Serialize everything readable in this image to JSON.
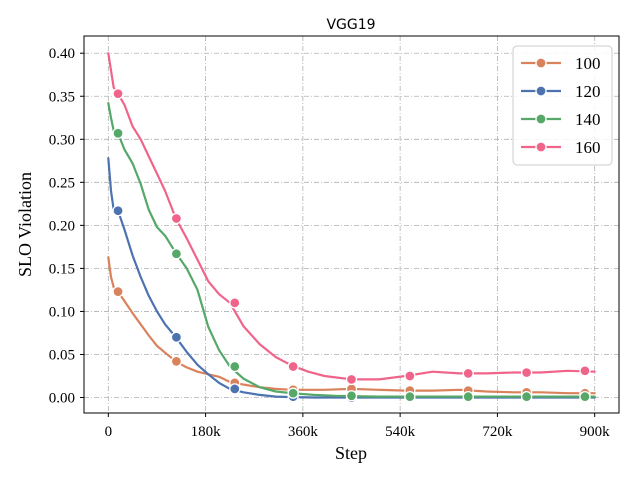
{
  "chart_data": {
    "type": "line",
    "title": "VGG19",
    "xlabel": "Step",
    "ylabel": "SLO Violation",
    "xlim": [
      -45000,
      945000
    ],
    "ylim": [
      -0.018,
      0.42
    ],
    "x_ticks": [
      0,
      180000,
      360000,
      540000,
      720000,
      900000
    ],
    "x_tick_labels": [
      "0",
      "180k",
      "360k",
      "540k",
      "720k",
      "900k"
    ],
    "y_ticks": [
      0.0,
      0.05,
      0.1,
      0.15,
      0.2,
      0.25,
      0.3,
      0.35,
      0.4
    ],
    "y_tick_labels": [
      "0.00",
      "0.05",
      "0.10",
      "0.15",
      "0.20",
      "0.25",
      "0.30",
      "0.35",
      "0.40"
    ],
    "grid": true,
    "legend_position": "top-right",
    "series": [
      {
        "name": "100",
        "color": "#d9825b",
        "x": [
          0,
          5000,
          10000,
          18000,
          30000,
          45000,
          60000,
          75000,
          90000,
          105000,
          125000,
          145000,
          165000,
          185000,
          205000,
          225000,
          250000,
          280000,
          310000,
          340000,
          360000,
          400000,
          450000,
          500000,
          550000,
          600000,
          650000,
          700000,
          750000,
          800000,
          850000,
          900000
        ],
        "y": [
          0.163,
          0.14,
          0.128,
          0.123,
          0.112,
          0.098,
          0.085,
          0.072,
          0.06,
          0.052,
          0.042,
          0.035,
          0.03,
          0.027,
          0.024,
          0.018,
          0.015,
          0.012,
          0.01,
          0.009,
          0.009,
          0.009,
          0.01,
          0.009,
          0.008,
          0.008,
          0.009,
          0.007,
          0.006,
          0.006,
          0.005,
          0.005
        ],
        "marker_x": [
          18000,
          126000,
          234000,
          342000,
          450000,
          558000,
          666000,
          774000,
          882000
        ],
        "marker_y": [
          0.123,
          0.042,
          0.017,
          0.009,
          0.01,
          0.008,
          0.008,
          0.006,
          0.005
        ]
      },
      {
        "name": "120",
        "color": "#4c72b0",
        "x": [
          0,
          5000,
          10000,
          18000,
          30000,
          45000,
          60000,
          75000,
          90000,
          105000,
          125000,
          145000,
          165000,
          185000,
          205000,
          225000,
          250000,
          280000,
          310000,
          340000,
          380000,
          450000,
          550000,
          650000,
          750000,
          900000
        ],
        "y": [
          0.278,
          0.24,
          0.218,
          0.217,
          0.195,
          0.165,
          0.14,
          0.118,
          0.1,
          0.085,
          0.07,
          0.053,
          0.038,
          0.027,
          0.017,
          0.01,
          0.006,
          0.003,
          0.001,
          0.0005,
          0.0,
          0.0,
          0.0,
          0.0,
          0.0,
          0.0
        ],
        "marker_x": [
          18000,
          126000,
          234000,
          342000,
          450000,
          558000,
          666000,
          774000,
          882000
        ],
        "marker_y": [
          0.217,
          0.07,
          0.01,
          0.001,
          0.0,
          0.0,
          0.0,
          0.0,
          0.0
        ]
      },
      {
        "name": "140",
        "color": "#55a868",
        "x": [
          0,
          5000,
          10000,
          18000,
          30000,
          45000,
          60000,
          75000,
          90000,
          105000,
          125000,
          145000,
          165000,
          185000,
          205000,
          225000,
          250000,
          280000,
          310000,
          340000,
          380000,
          420000,
          500000,
          600000,
          700000,
          800000,
          900000
        ],
        "y": [
          0.342,
          0.325,
          0.31,
          0.307,
          0.288,
          0.272,
          0.248,
          0.218,
          0.198,
          0.188,
          0.168,
          0.15,
          0.125,
          0.082,
          0.055,
          0.036,
          0.022,
          0.012,
          0.007,
          0.005,
          0.003,
          0.002,
          0.001,
          0.001,
          0.001,
          0.001,
          0.001
        ],
        "marker_x": [
          18000,
          126000,
          234000,
          342000,
          450000,
          558000,
          666000,
          774000,
          882000
        ],
        "marker_y": [
          0.307,
          0.167,
          0.036,
          0.005,
          0.002,
          0.001,
          0.001,
          0.001,
          0.001
        ]
      },
      {
        "name": "160",
        "color": "#f0648a",
        "x": [
          0,
          5000,
          10000,
          18000,
          30000,
          45000,
          60000,
          75000,
          90000,
          105000,
          125000,
          145000,
          165000,
          185000,
          205000,
          225000,
          250000,
          280000,
          310000,
          340000,
          370000,
          400000,
          450000,
          500000,
          550000,
          600000,
          650000,
          700000,
          750000,
          800000,
          850000,
          900000
        ],
        "y": [
          0.4,
          0.38,
          0.36,
          0.353,
          0.34,
          0.315,
          0.3,
          0.28,
          0.26,
          0.24,
          0.208,
          0.185,
          0.16,
          0.135,
          0.12,
          0.11,
          0.083,
          0.062,
          0.047,
          0.037,
          0.03,
          0.025,
          0.021,
          0.021,
          0.025,
          0.03,
          0.028,
          0.028,
          0.029,
          0.029,
          0.031,
          0.03
        ],
        "marker_x": [
          18000,
          126000,
          234000,
          342000,
          450000,
          558000,
          666000,
          774000,
          882000
        ],
        "marker_y": [
          0.353,
          0.208,
          0.11,
          0.036,
          0.021,
          0.025,
          0.028,
          0.029,
          0.031
        ]
      }
    ]
  }
}
